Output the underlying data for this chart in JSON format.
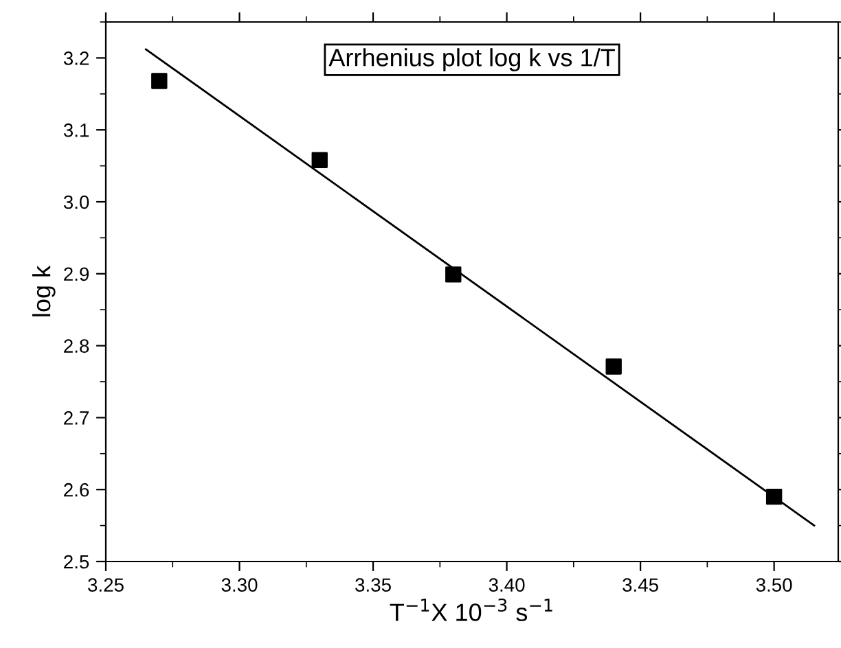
{
  "chart_data": {
    "type": "scatter",
    "xlabel": "T$^{−1}$X 10$^{−3}$ s$^{−1}$",
    "ylabel": "log k",
    "annotations": [
      "Arrhenius plot log k vs 1/T"
    ],
    "x": [
      3.27,
      3.33,
      3.38,
      3.44,
      3.5
    ],
    "series": [
      {
        "color": "#000000",
        "marker": "square",
        "values": [
          3.168,
          3.058,
          2.899,
          2.771,
          2.59
        ]
      },
      {
        "type": "line",
        "color": "#000000",
        "marker": "none",
        "line_style": "solid",
        "x": [
          3.265,
          3.515
        ],
        "values": [
          3.212,
          2.55
        ]
      }
    ],
    "xlim": [
      3.25,
      3.524
    ],
    "ylim": [
      2.5,
      3.25
    ],
    "xticks": [
      3.25,
      {
        "value": 3.3,
        "label": "3.30"
      },
      3.35,
      {
        "value": 3.4,
        "label": "3.40"
      },
      3.45,
      {
        "value": 3.5,
        "label": "3.50"
      }
    ],
    "yticks": [
      2.5,
      2.6,
      2.7,
      2.8,
      2.9,
      {
        "value": 3.0,
        "label": "3.0"
      },
      3.1,
      3.2
    ],
    "grid": false,
    "legend": false
  }
}
